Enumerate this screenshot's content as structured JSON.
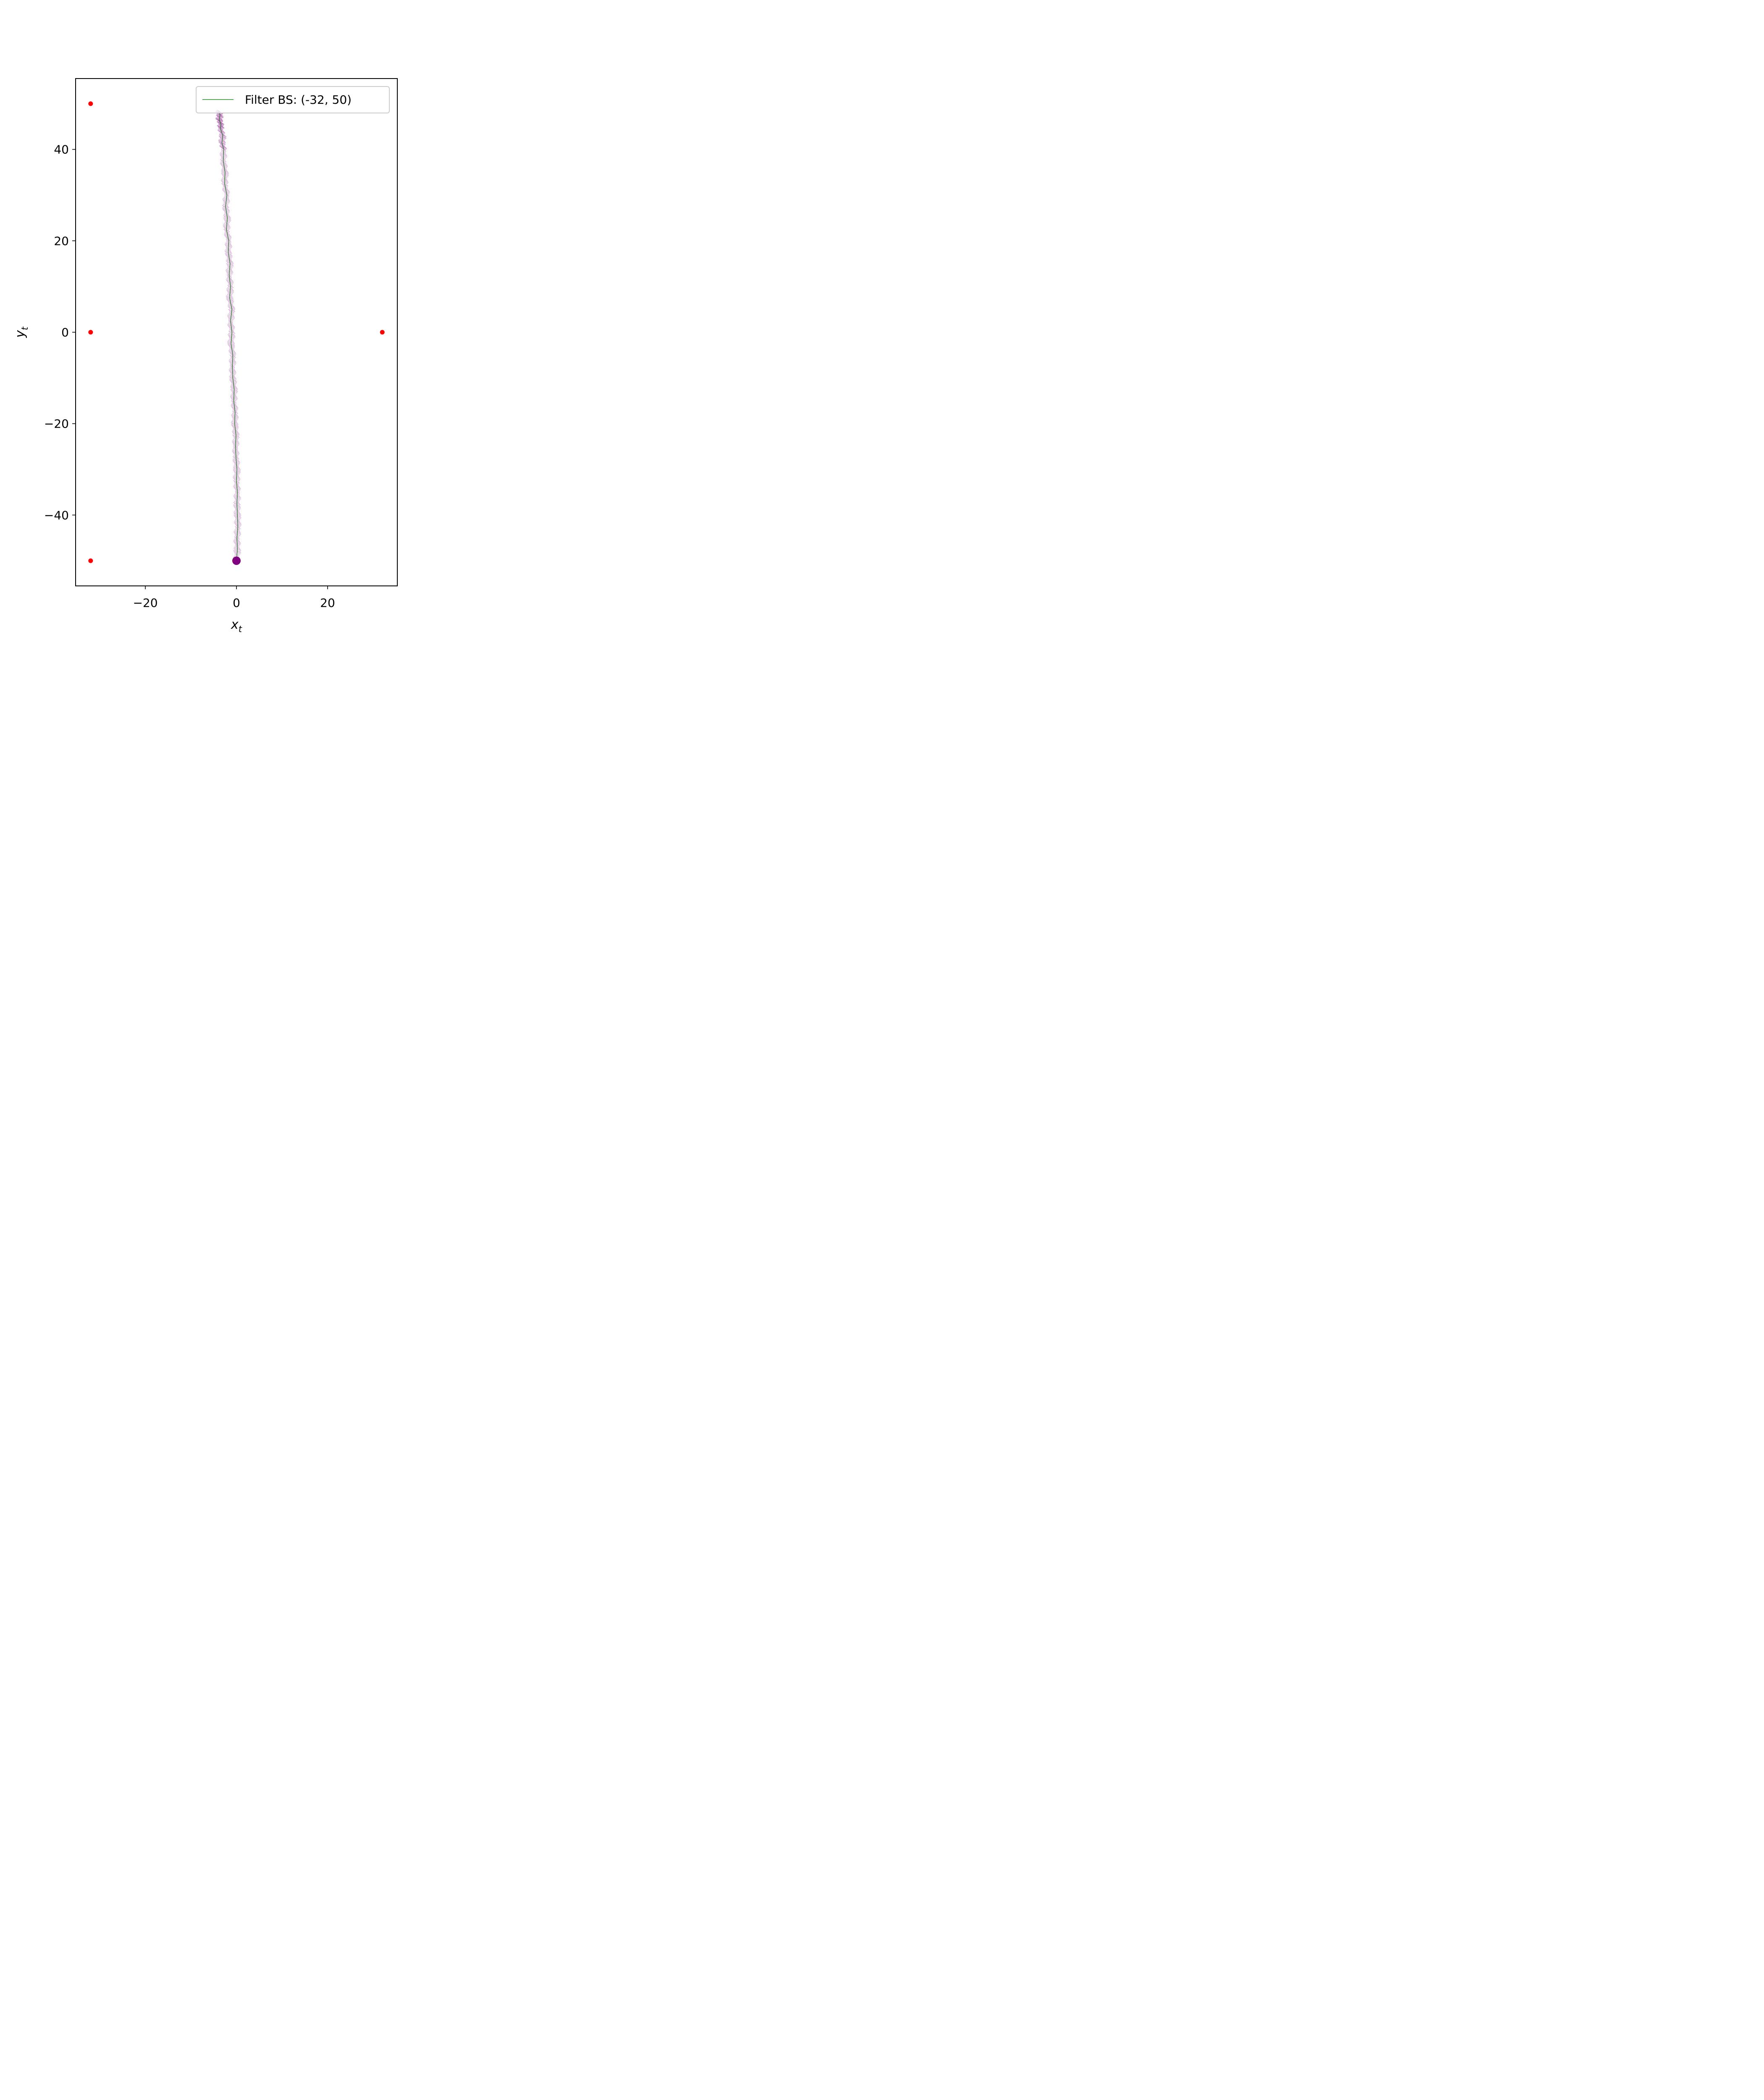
{
  "chart_data": {
    "type": "line",
    "title": "",
    "xlabel": "x",
    "xlabel_sub": "t",
    "ylabel": "y",
    "ylabel_sub": "t",
    "xlim": [
      -35.3,
      35.3
    ],
    "ylim": [
      -55.5,
      55.5
    ],
    "xticks": [
      -20,
      0,
      20
    ],
    "yticks": [
      -40,
      -20,
      0,
      20,
      40
    ],
    "xtick_labels": [
      "−20",
      "0",
      "20"
    ],
    "ytick_labels": [
      "−40",
      "−20",
      "0",
      "20",
      "40"
    ],
    "grid": false,
    "legend_position": "upper-right",
    "legend": {
      "label": "Filter BS: (-32, 50)",
      "color": "#228b22"
    },
    "colors": {
      "anchors": "#ff0000",
      "trajectory": "#800080",
      "filter": "#228b22",
      "true_path": "#000000",
      "start": "#800080"
    },
    "anchors": [
      {
        "x": -32,
        "y": 50
      },
      {
        "x": -32,
        "y": 0
      },
      {
        "x": -32,
        "y": -50
      },
      {
        "x": 32,
        "y": 0
      }
    ],
    "start_point": {
      "x": 0,
      "y": -50
    },
    "filter_path": {
      "x": [
        0.0,
        0.2,
        0.1,
        0.3,
        0.2,
        0.1,
        0.2,
        0.0,
        0.1,
        -0.1,
        -0.2,
        -0.1,
        -0.4,
        -0.3,
        -0.6,
        -0.5,
        -0.8,
        -0.9,
        -0.8,
        -1.2,
        -1.0,
        -1.3,
        -1.0,
        -1.5,
        -1.3,
        -1.6,
        -1.4,
        -1.8,
        -1.7,
        -2.2,
        -2.0,
        -2.4,
        -2.1,
        -2.6,
        -2.5,
        -2.9,
        -2.8,
        -3.2,
        -3.0,
        -3.5,
        -3.4,
        -3.8,
        -3.6,
        -3.9
      ],
      "y": [
        -50.0,
        -47.5,
        -45.0,
        -42.5,
        -40.0,
        -37.5,
        -35.0,
        -32.5,
        -30.0,
        -27.5,
        -25.0,
        -22.5,
        -20.0,
        -17.5,
        -15.0,
        -12.5,
        -10.0,
        -7.5,
        -5.0,
        -2.5,
        0.0,
        2.5,
        5.0,
        7.5,
        10.0,
        12.5,
        15.0,
        17.5,
        20.0,
        22.5,
        25.0,
        27.5,
        30.0,
        32.5,
        35.0,
        37.5,
        40.0,
        41.5,
        43.0,
        44.5,
        45.5,
        46.5,
        47.5,
        48.5
      ]
    }
  }
}
